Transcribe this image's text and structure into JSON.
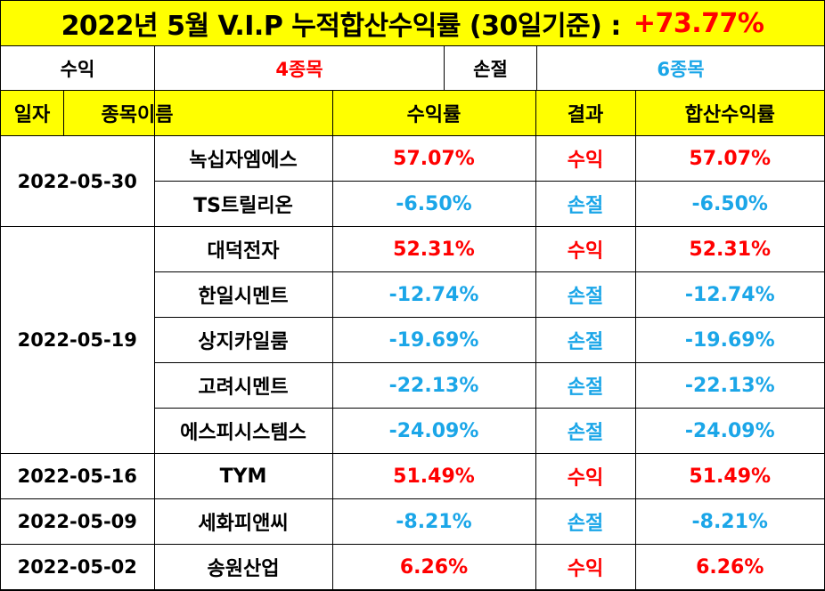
{
  "title": {
    "text": "2022년 5월 V.I.P 누적합산수익률 (30일기준) :",
    "total": "+73.77%"
  },
  "summary": {
    "profit_label": "수익",
    "profit_count": "4종목",
    "loss_label": "손절",
    "loss_count": "6종목"
  },
  "headers": [
    "일자",
    "종목이름",
    "수익률",
    "결과",
    "합산수익률"
  ],
  "groups": [
    {
      "date": "2022-05-30",
      "rows": [
        {
          "name": "녹십자엠에스",
          "ret": "57.07%",
          "result": "수익",
          "sum": "57.07%",
          "tone": "red"
        },
        {
          "name": "TS트릴리온",
          "ret": "-6.50%",
          "result": "손절",
          "sum": "-6.50%",
          "tone": "blue"
        }
      ]
    },
    {
      "date": "2022-05-19",
      "rows": [
        {
          "name": "대덕전자",
          "ret": "52.31%",
          "result": "수익",
          "sum": "52.31%",
          "tone": "red"
        },
        {
          "name": "한일시멘트",
          "ret": "-12.74%",
          "result": "손절",
          "sum": "-12.74%",
          "tone": "blue"
        },
        {
          "name": "상지카일룸",
          "ret": "-19.69%",
          "result": "손절",
          "sum": "-19.69%",
          "tone": "blue"
        },
        {
          "name": "고려시멘트",
          "ret": "-22.13%",
          "result": "손절",
          "sum": "-22.13%",
          "tone": "blue"
        },
        {
          "name": "에스피시스템스",
          "ret": "-24.09%",
          "result": "손절",
          "sum": "-24.09%",
          "tone": "blue"
        }
      ]
    },
    {
      "date": "2022-05-16",
      "rows": [
        {
          "name": "TYM",
          "ret": "51.49%",
          "result": "수익",
          "sum": "51.49%",
          "tone": "red"
        }
      ]
    },
    {
      "date": "2022-05-09",
      "rows": [
        {
          "name": "세화피앤씨",
          "ret": "-8.21%",
          "result": "손절",
          "sum": "-8.21%",
          "tone": "blue"
        }
      ]
    },
    {
      "date": "2022-05-02",
      "rows": [
        {
          "name": "송원산업",
          "ret": "6.26%",
          "result": "수익",
          "sum": "6.26%",
          "tone": "red"
        }
      ]
    }
  ],
  "colors": {
    "header_bg": "#ffff00",
    "profit": "#ff0000",
    "loss": "#1ba6e8"
  }
}
